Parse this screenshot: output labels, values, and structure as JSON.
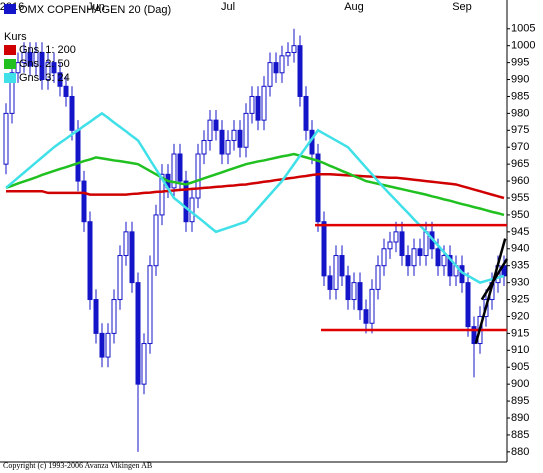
{
  "chart_data": {
    "type": "candlestick",
    "title": "OMX COPENHAGEN 20 (Dag)",
    "price_name": "Kurs",
    "price_color": "#1414c8",
    "categories": [
      null,
      null,
      null,
      null,
      null,
      null,
      null,
      null,
      null,
      null,
      null,
      null,
      null,
      null,
      null,
      null,
      null,
      null,
      null,
      null,
      null,
      null,
      null,
      null,
      null,
      null,
      null,
      null,
      null,
      null,
      null,
      null,
      null,
      null,
      null,
      null,
      null,
      null,
      null,
      null,
      null,
      null,
      null,
      null,
      null,
      null,
      null,
      null,
      null,
      null,
      null,
      null,
      null,
      null,
      null,
      null,
      null,
      null,
      null,
      null,
      null,
      null,
      null,
      null,
      null,
      null,
      null,
      null,
      null,
      null,
      null,
      null,
      null,
      null,
      null,
      null,
      null,
      null,
      null,
      null,
      null,
      null,
      null,
      null
    ],
    "open": [
      965,
      980,
      992,
      995,
      998,
      994,
      998,
      990,
      995,
      992,
      988,
      985,
      975,
      960,
      948,
      925,
      915,
      908,
      915,
      925,
      938,
      945,
      930,
      900,
      912,
      935,
      950,
      962,
      958,
      968,
      960,
      948,
      955,
      968,
      972,
      978,
      975,
      968,
      972,
      975,
      970,
      980,
      985,
      978,
      988,
      995,
      992,
      997,
      998,
      1000,
      985,
      975,
      968,
      948,
      932,
      928,
      938,
      932,
      925,
      930,
      922,
      918,
      928,
      935,
      940,
      942,
      945,
      938,
      935,
      940,
      938,
      945,
      940,
      935,
      938,
      932,
      935,
      930,
      917,
      912,
      920,
      925,
      930,
      935
    ],
    "high": [
      983,
      995,
      998,
      1001,
      1001,
      1001,
      1001,
      998,
      998,
      995,
      991,
      988,
      978,
      963,
      951,
      928,
      918,
      918,
      928,
      941,
      948,
      948,
      933,
      915,
      938,
      953,
      965,
      965,
      971,
      971,
      963,
      958,
      971,
      975,
      981,
      981,
      978,
      975,
      978,
      978,
      983,
      988,
      988,
      991,
      998,
      998,
      1000,
      1001,
      1005,
      1003,
      988,
      978,
      971,
      951,
      935,
      941,
      941,
      935,
      933,
      933,
      925,
      931,
      938,
      943,
      945,
      948,
      948,
      941,
      943,
      943,
      948,
      948,
      943,
      941,
      941,
      938,
      938,
      933,
      920,
      923,
      928,
      933,
      938,
      938
    ],
    "low": [
      962,
      977,
      989,
      992,
      991,
      991,
      987,
      987,
      989,
      985,
      982,
      972,
      957,
      945,
      922,
      912,
      905,
      905,
      912,
      922,
      935,
      927,
      880,
      897,
      909,
      932,
      947,
      955,
      955,
      957,
      945,
      945,
      952,
      965,
      969,
      972,
      965,
      965,
      969,
      967,
      967,
      977,
      975,
      975,
      985,
      989,
      989,
      994,
      995,
      982,
      972,
      965,
      945,
      929,
      925,
      925,
      929,
      922,
      922,
      919,
      915,
      915,
      925,
      932,
      937,
      939,
      935,
      932,
      932,
      935,
      935,
      937,
      932,
      932,
      929,
      929,
      927,
      914,
      902,
      909,
      917,
      922,
      927,
      929
    ],
    "close": [
      980,
      992,
      995,
      998,
      994,
      998,
      990,
      995,
      992,
      988,
      985,
      975,
      960,
      948,
      925,
      915,
      908,
      915,
      925,
      938,
      945,
      930,
      900,
      912,
      935,
      950,
      962,
      958,
      968,
      960,
      948,
      955,
      968,
      972,
      978,
      975,
      968,
      972,
      975,
      970,
      980,
      985,
      978,
      988,
      995,
      992,
      997,
      998,
      1000,
      985,
      975,
      968,
      948,
      932,
      928,
      938,
      932,
      925,
      930,
      922,
      918,
      928,
      935,
      940,
      942,
      945,
      938,
      935,
      940,
      938,
      945,
      940,
      935,
      938,
      932,
      935,
      930,
      917,
      912,
      920,
      925,
      930,
      935,
      932
    ],
    "series": [
      {
        "name": "Gns. 1: 200",
        "color": "#d00000",
        "values": [
          957,
          957,
          957,
          957,
          957,
          957,
          957,
          956.5,
          956.5,
          956.5,
          956.5,
          956.5,
          956.5,
          956.5,
          956,
          956,
          956,
          956,
          956,
          956,
          956,
          956.2,
          956.3,
          956.5,
          956.6,
          956.8,
          956.9,
          957.1,
          957.2,
          957.4,
          957.5,
          957.7,
          957.8,
          958,
          958.1,
          958.3,
          958.4,
          958.6,
          958.7,
          958.9,
          959,
          959.3,
          959.5,
          959.8,
          960,
          960.3,
          960.5,
          960.8,
          961,
          961.3,
          961.5,
          961.8,
          962,
          962,
          962,
          961.9,
          961.8,
          961.7,
          961.6,
          961.5,
          961.4,
          961.3,
          961.2,
          961.1,
          961,
          961,
          960.8,
          960.6,
          960.4,
          960.2,
          960,
          959.8,
          959.6,
          959.4,
          959.2,
          959,
          958.5,
          958,
          957.5,
          957,
          956.5,
          956,
          955.5,
          955
        ]
      },
      {
        "name": "Gns. 2: 50",
        "color": "#20c020",
        "values": [
          958,
          958.6,
          959.3,
          959.9,
          960.5,
          961.1,
          961.8,
          962.4,
          963,
          963.6,
          964.1,
          964.7,
          965.3,
          965.9,
          966.4,
          967,
          966.7,
          966.4,
          966.1,
          965.9,
          965.6,
          965.3,
          965,
          964,
          963,
          962,
          961,
          960,
          959.7,
          959.3,
          959,
          959.6,
          960.2,
          960.8,
          961.4,
          962,
          962.6,
          963.2,
          963.8,
          964.4,
          965,
          965.4,
          965.8,
          966.1,
          966.5,
          966.9,
          967.3,
          967.6,
          968,
          967.5,
          967,
          966.5,
          966,
          965.3,
          964.5,
          963.8,
          963,
          962.3,
          961.5,
          960.8,
          960,
          959.6,
          959.2,
          958.8,
          958.4,
          958,
          957.6,
          957.2,
          956.8,
          956.4,
          956,
          955.5,
          955.1,
          954.6,
          954.2,
          953.7,
          953.2,
          952.8,
          952.3,
          951.9,
          951.4,
          950.9,
          950.5,
          950
        ]
      },
      {
        "name": "Gns. 3: 24",
        "color": "#40e0e8",
        "values": [
          958,
          959.5,
          961,
          962.5,
          964,
          965.5,
          967,
          968.5,
          970,
          971.3,
          972.5,
          973.8,
          975,
          976.3,
          977.5,
          978.8,
          980,
          978.7,
          977.3,
          976,
          974.7,
          973.3,
          972,
          969.2,
          966.3,
          963.5,
          960.7,
          957.8,
          955,
          953.6,
          952.1,
          950.7,
          949.3,
          947.9,
          946.4,
          945,
          945.6,
          946.2,
          946.8,
          947.4,
          948,
          950,
          952,
          954,
          956,
          958,
          960,
          962.5,
          965,
          967.5,
          970,
          972.5,
          975,
          974,
          973,
          972,
          971,
          970,
          968,
          966,
          964,
          962,
          960,
          958,
          956.1,
          954.3,
          952.4,
          950.6,
          948.7,
          946.9,
          945,
          943,
          941,
          939,
          937,
          935,
          933,
          932,
          931,
          930,
          930.5,
          931,
          931.5,
          932
        ]
      }
    ],
    "lines": [
      {
        "color": "#e00000",
        "from": [
          51.5,
          947
        ],
        "to": [
          83.5,
          947
        ]
      },
      {
        "color": "#e00000",
        "from": [
          52.5,
          916
        ],
        "to": [
          83.5,
          916
        ]
      },
      {
        "color": "#000000",
        "from": [
          78.3,
          912
        ],
        "to": [
          83.2,
          943
        ]
      },
      {
        "color": "#000000",
        "from": [
          79.3,
          925
        ],
        "to": [
          83.5,
          937
        ]
      }
    ],
    "xticks": [
      {
        "value": 1,
        "label": "2016"
      },
      {
        "value": 15,
        "label": "Jun"
      },
      {
        "value": 37,
        "label": "Jul"
      },
      {
        "value": 58,
        "label": "Aug"
      },
      {
        "value": 76,
        "label": "Sep"
      }
    ],
    "ylim": [
      877,
      1013.5
    ],
    "yticks": [
      880,
      885,
      890,
      895,
      900,
      905,
      910,
      915,
      920,
      925,
      930,
      935,
      940,
      945,
      950,
      955,
      960,
      965,
      970,
      975,
      980,
      985,
      990,
      995,
      1000,
      1005
    ],
    "grid": false
  },
  "copyright": "Copyright (c) 1993-2006 Avanza Vikingen AB"
}
